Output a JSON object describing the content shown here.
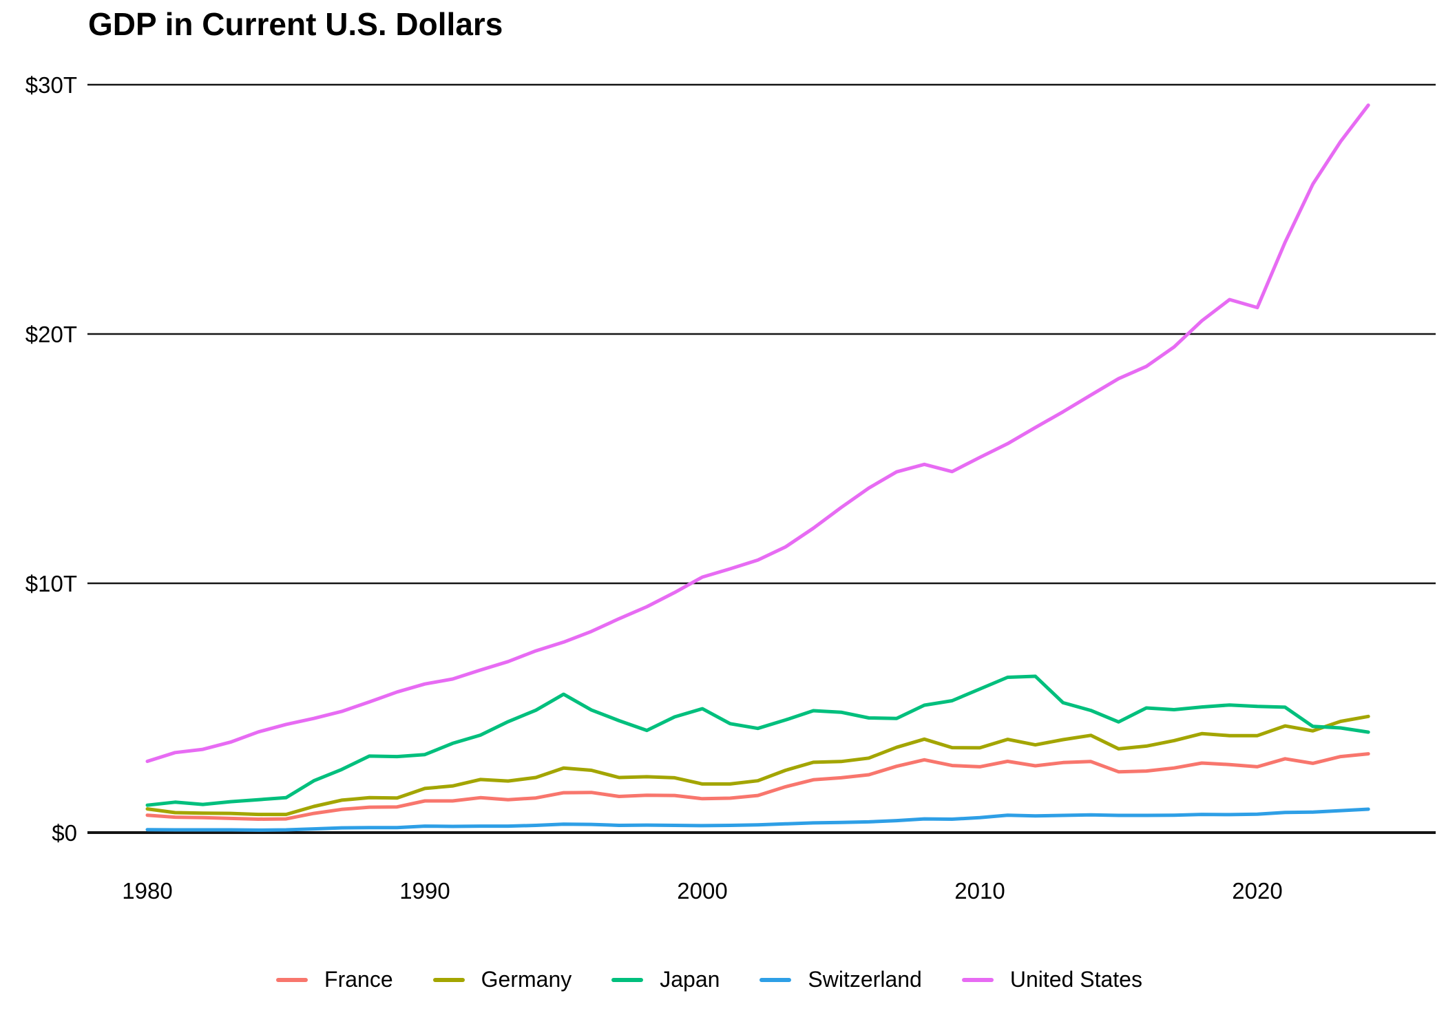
{
  "title": "GDP in Current U.S. Dollars",
  "chart_data": {
    "type": "line",
    "title": "GDP in Current U.S. Dollars",
    "units": "trillions of current U.S. dollars",
    "x": [
      1980,
      1981,
      1982,
      1983,
      1984,
      1985,
      1986,
      1987,
      1988,
      1989,
      1990,
      1991,
      1992,
      1993,
      1994,
      1995,
      1996,
      1997,
      1998,
      1999,
      2000,
      2001,
      2002,
      2003,
      2004,
      2005,
      2006,
      2007,
      2008,
      2009,
      2010,
      2011,
      2012,
      2013,
      2014,
      2015,
      2016,
      2017,
      2018,
      2019,
      2020,
      2021,
      2022,
      2023,
      2024
    ],
    "x_ticks": [
      1980,
      1990,
      2000,
      2010,
      2020
    ],
    "x_tick_labels": [
      "1980",
      "1990",
      "2000",
      "2010",
      "2020"
    ],
    "y_ticks": [
      0,
      10,
      20,
      30
    ],
    "y_tick_labels": [
      "$0",
      "$10T",
      "$20T",
      "$30T"
    ],
    "ylim": [
      0,
      30
    ],
    "grid": "horizontal",
    "legend_position": "bottom",
    "series": [
      {
        "name": "France",
        "color": "#F8766D",
        "values": [
          0.7,
          0.62,
          0.6,
          0.57,
          0.54,
          0.55,
          0.77,
          0.93,
          1.02,
          1.03,
          1.27,
          1.27,
          1.4,
          1.32,
          1.39,
          1.6,
          1.61,
          1.45,
          1.5,
          1.49,
          1.36,
          1.38,
          1.49,
          1.84,
          2.12,
          2.2,
          2.32,
          2.66,
          2.92,
          2.69,
          2.64,
          2.86,
          2.68,
          2.81,
          2.85,
          2.44,
          2.47,
          2.59,
          2.79,
          2.73,
          2.64,
          2.96,
          2.78,
          3.05,
          3.16
        ]
      },
      {
        "name": "Germany",
        "color": "#A3A500",
        "values": [
          0.95,
          0.8,
          0.78,
          0.77,
          0.73,
          0.73,
          1.05,
          1.3,
          1.4,
          1.39,
          1.77,
          1.87,
          2.13,
          2.07,
          2.21,
          2.59,
          2.5,
          2.21,
          2.24,
          2.2,
          1.95,
          1.95,
          2.08,
          2.5,
          2.82,
          2.85,
          2.99,
          3.42,
          3.75,
          3.41,
          3.4,
          3.74,
          3.52,
          3.73,
          3.9,
          3.36,
          3.47,
          3.69,
          3.97,
          3.89,
          3.89,
          4.28,
          4.08,
          4.46,
          4.66
        ]
      },
      {
        "name": "Japan",
        "color": "#00BF7D",
        "values": [
          1.1,
          1.22,
          1.13,
          1.24,
          1.32,
          1.4,
          2.08,
          2.53,
          3.07,
          3.05,
          3.13,
          3.58,
          3.91,
          4.45,
          4.91,
          5.55,
          4.92,
          4.49,
          4.1,
          4.64,
          4.97,
          4.37,
          4.18,
          4.52,
          4.89,
          4.83,
          4.6,
          4.58,
          5.11,
          5.29,
          5.76,
          6.23,
          6.27,
          5.21,
          4.9,
          4.44,
          5.0,
          4.93,
          5.04,
          5.12,
          5.06,
          5.03,
          4.26,
          4.2,
          4.03
        ]
      },
      {
        "name": "Switzerland",
        "color": "#2E9FE6",
        "values": [
          0.12,
          0.11,
          0.11,
          0.11,
          0.1,
          0.11,
          0.15,
          0.19,
          0.2,
          0.2,
          0.26,
          0.25,
          0.26,
          0.26,
          0.29,
          0.34,
          0.33,
          0.29,
          0.3,
          0.29,
          0.28,
          0.29,
          0.31,
          0.35,
          0.39,
          0.41,
          0.43,
          0.48,
          0.55,
          0.54,
          0.6,
          0.7,
          0.67,
          0.69,
          0.71,
          0.69,
          0.69,
          0.7,
          0.73,
          0.72,
          0.74,
          0.81,
          0.82,
          0.88,
          0.94
        ]
      },
      {
        "name": "United States",
        "color": "#E76BF3",
        "values": [
          2.86,
          3.21,
          3.34,
          3.63,
          4.04,
          4.34,
          4.58,
          4.86,
          5.24,
          5.64,
          5.96,
          6.16,
          6.52,
          6.86,
          7.29,
          7.64,
          8.07,
          8.58,
          9.06,
          9.63,
          10.25,
          10.58,
          10.93,
          11.46,
          12.21,
          13.04,
          13.82,
          14.47,
          14.77,
          14.48,
          15.05,
          15.6,
          16.25,
          16.88,
          17.55,
          18.21,
          18.7,
          19.48,
          20.53,
          21.38,
          21.06,
          23.68,
          26.01,
          27.72,
          29.18
        ]
      }
    ]
  }
}
